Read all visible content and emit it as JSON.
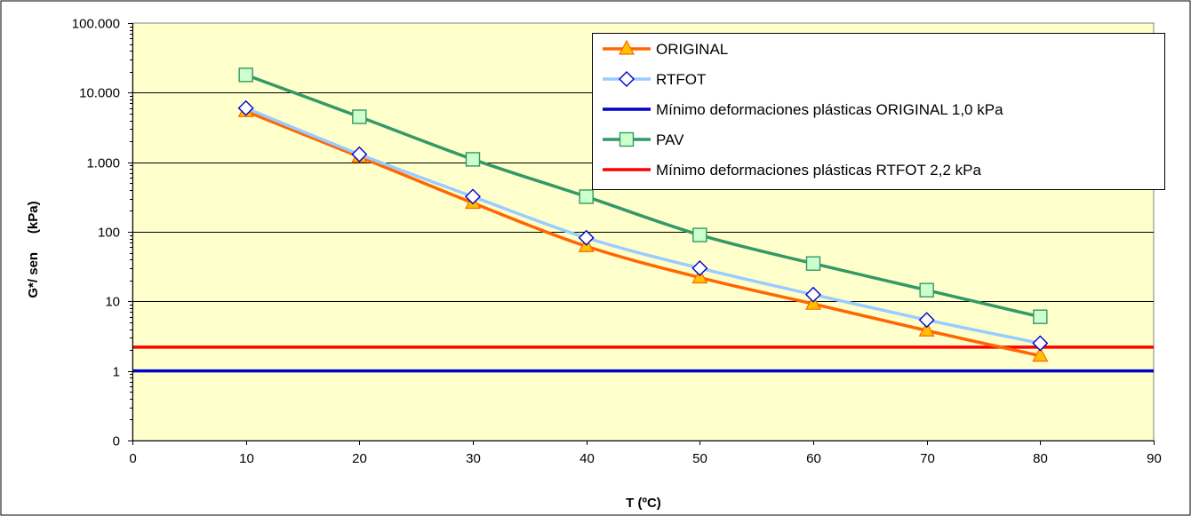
{
  "chart_data": {
    "type": "line",
    "title": "",
    "xlabel": "T (ºC)",
    "ylabel": "G*/ sen     (kPa)",
    "xlim": [
      0,
      90
    ],
    "xticks": [
      0,
      10,
      20,
      30,
      40,
      50,
      60,
      70,
      80,
      90
    ],
    "ylim": [
      0.1,
      100000
    ],
    "yscale": "log",
    "yticks": [
      {
        "value": 0.1,
        "label": "0"
      },
      {
        "value": 1,
        "label": "1"
      },
      {
        "value": 10,
        "label": "10"
      },
      {
        "value": 100,
        "label": "100"
      },
      {
        "value": 1000,
        "label": "1.000"
      },
      {
        "value": 10000,
        "label": "10.000"
      },
      {
        "value": 100000,
        "label": "100.000"
      }
    ],
    "grid": "horizontal",
    "legend": "top-right",
    "plot_background": "#FFFFCC",
    "series": [
      {
        "name": "ORIGINAL",
        "color": "#FF6600",
        "marker": "triangle",
        "marker_fill": "#FFC000",
        "x": [
          10,
          20,
          30,
          40,
          50,
          60,
          70,
          80
        ],
        "values": [
          5400,
          1200,
          260,
          62,
          22,
          9.2,
          3.8,
          1.65
        ]
      },
      {
        "name": "RTFOT",
        "color": "#99CCFF",
        "marker": "diamond",
        "marker_fill": "#FFFFFF",
        "marker_stroke": "#0000CC",
        "x": [
          10,
          20,
          30,
          40,
          50,
          60,
          70,
          80
        ],
        "values": [
          6000,
          1300,
          320,
          82,
          30,
          12.5,
          5.4,
          2.5
        ]
      },
      {
        "name": "Mínimo deformaciones plásticas ORIGINAL 1,0 kPa",
        "color": "#0000CC",
        "marker": "none",
        "x": [
          0,
          90
        ],
        "values": [
          1.0,
          1.0
        ]
      },
      {
        "name": "PAV",
        "color": "#339966",
        "marker": "square",
        "marker_fill": "#CCFFCC",
        "x": [
          10,
          20,
          30,
          40,
          50,
          60,
          70,
          80
        ],
        "values": [
          18000,
          4500,
          1100,
          320,
          90,
          35,
          14.5,
          6
        ]
      },
      {
        "name": "Mínimo deformaciones plásticas RTFOT 2,2 kPa",
        "color": "#FF0000",
        "marker": "none",
        "x": [
          0,
          90
        ],
        "values": [
          2.2,
          2.2
        ]
      }
    ]
  }
}
